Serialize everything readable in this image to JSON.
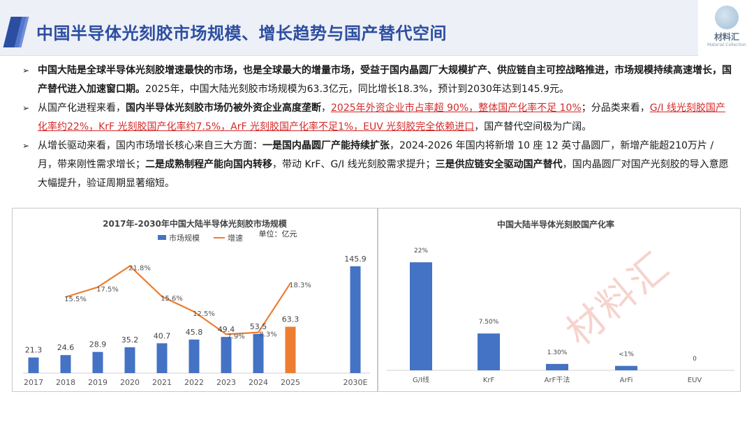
{
  "header": {
    "title": "中国半导体光刻胶市场规模、增长趋势与国产替代空间",
    "logo_name": "材料汇",
    "logo_sub": "Material Collection"
  },
  "bullets": [
    {
      "b1": "中国大陆是全球半导体光刻胶增速最快的市场，也是全球最大的增量市场，受益于国内晶圆厂大规模扩产、供应链自主可控战略推进，市场规模持续高速增长，国产替代进入加速窗口期。",
      "t1": "2025年，中国大陆光刻胶市场规模为63.3亿元，同比增长18.3%，预计到2030年达到145.9元。"
    },
    {
      "t1": "从国产化进程来看，",
      "b1": "国内半导体光刻胶市场仍被外资企业高度垄断",
      "t2": "，",
      "r1": "2025年外资企业市占率超 90%，整体国产化率不足 10%",
      "t3": "；分品类来看，",
      "r2": "G/I 线光刻胶国产化率约22%，KrF 光刻胶国产化率约7.5%，ArF 光刻胶国产化率不足1%，EUV 光刻胶完全依赖进口",
      "t4": "，国产替代空间极为广阔。"
    },
    {
      "t1": "从增长驱动来看，国内市场增长核心来自三大方面：",
      "b1": "一是国内晶圆厂产能持续扩张",
      "t2": "，2024-2026 年国内将新增 10 座 12 英寸晶圆厂，新增产能超210万片 / 月，带来刚性需求增长；",
      "b2": "二是成熟制程产能向国内转移",
      "t3": "，带动 KrF、G/I 线光刻胶需求提升；",
      "b3": "三是供应链安全驱动国产替代",
      "t4": "，国内晶圆厂对国产光刻胶的导入意愿大幅提升，验证周期显著缩短。"
    }
  ],
  "watermark": "材料汇",
  "colors": {
    "accent": "#2c4ea0",
    "bar_blue": "#4472c4",
    "bar_orange": "#ed7d31",
    "line_orange": "#ed7d31",
    "highlight_red": "#d42a2a"
  },
  "chart_data": [
    {
      "type": "bar",
      "title": "2017年-2030年中国大陆半导体光刻胶市场规模",
      "unit_label": "单位：亿元",
      "legend": [
        "市场规模",
        "增速"
      ],
      "categories": [
        "2017",
        "2018",
        "2019",
        "2020",
        "2021",
        "2022",
        "2023",
        "2024",
        "2025",
        "2030E"
      ],
      "series": [
        {
          "name": "市场规模",
          "kind": "bar",
          "values": [
            21.3,
            24.6,
            28.9,
            35.2,
            40.7,
            45.8,
            49.4,
            53.5,
            63.3,
            145.9
          ],
          "highlight_index": 8
        },
        {
          "name": "增速",
          "kind": "line",
          "values": [
            null,
            15.5,
            17.5,
            21.8,
            15.6,
            12.5,
            7.9,
            8.3,
            18.3,
            null
          ],
          "labels": [
            "",
            "15.5%",
            "17.5%",
            "21.8%",
            "15.6%",
            "12.5%",
            "7.9%",
            "8.3%",
            "18.3%",
            ""
          ]
        }
      ],
      "value_labels": [
        "21.3",
        "24.6",
        "28.9",
        "35.2",
        "40.7",
        "45.8",
        "49.4",
        "53.5",
        "63.3",
        "145.9"
      ],
      "ylim_bar": [
        0,
        160
      ],
      "ylim_line": [
        0,
        25
      ],
      "legend_position": "top"
    },
    {
      "type": "bar",
      "title": "中国大陆半导体光刻胶国产化率",
      "categories": [
        "G/I线",
        "KrF",
        "ArF干法",
        "ArFi",
        "EUV"
      ],
      "values": [
        22,
        7.5,
        1.3,
        0.9,
        0
      ],
      "value_labels": [
        "22%",
        "7.50%",
        "1.30%",
        "<1%",
        "0"
      ],
      "ylim": [
        0,
        25
      ]
    }
  ]
}
